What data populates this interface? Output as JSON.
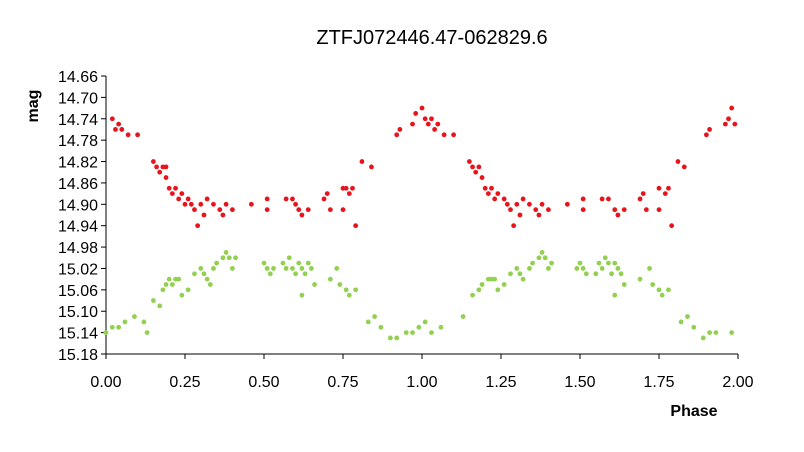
{
  "chart_data": {
    "type": "scatter",
    "title": "ZTFJ072446.47-062829.6",
    "xlabel": "Phase",
    "ylabel": "mag",
    "xlim": [
      0.0,
      2.0
    ],
    "ylim": [
      14.66,
      15.18
    ],
    "y_inverted": true,
    "grid": false,
    "legend": "none",
    "x_ticks": [
      "0.00",
      "0.25",
      "0.50",
      "0.75",
      "1.00",
      "1.25",
      "1.50",
      "1.75",
      "2.00"
    ],
    "y_ticks": [
      "14.66",
      "14.70",
      "14.74",
      "14.78",
      "14.82",
      "14.86",
      "14.90",
      "14.94",
      "14.98",
      "15.02",
      "15.06",
      "15.10",
      "15.14",
      "15.18"
    ],
    "series": [
      {
        "color": "#e8141b",
        "points": [
          [
            0.02,
            14.74
          ],
          [
            0.03,
            14.76
          ],
          [
            0.04,
            14.75
          ],
          [
            0.05,
            14.76
          ],
          [
            0.07,
            14.77
          ],
          [
            0.1,
            14.77
          ],
          [
            0.15,
            14.82
          ],
          [
            0.16,
            14.83
          ],
          [
            0.17,
            14.84
          ],
          [
            0.18,
            14.83
          ],
          [
            0.19,
            14.85
          ],
          [
            0.19,
            14.83
          ],
          [
            0.2,
            14.87
          ],
          [
            0.21,
            14.88
          ],
          [
            0.22,
            14.87
          ],
          [
            0.23,
            14.89
          ],
          [
            0.24,
            14.88
          ],
          [
            0.25,
            14.9
          ],
          [
            0.26,
            14.89
          ],
          [
            0.27,
            14.9
          ],
          [
            0.28,
            14.91
          ],
          [
            0.29,
            14.94
          ],
          [
            0.3,
            14.9
          ],
          [
            0.31,
            14.92
          ],
          [
            0.32,
            14.89
          ],
          [
            0.34,
            14.9
          ],
          [
            0.36,
            14.91
          ],
          [
            0.37,
            14.92
          ],
          [
            0.38,
            14.9
          ],
          [
            0.4,
            14.91
          ],
          [
            0.46,
            14.9
          ],
          [
            0.51,
            14.89
          ],
          [
            0.51,
            14.91
          ],
          [
            0.57,
            14.89
          ],
          [
            0.59,
            14.89
          ],
          [
            0.6,
            14.9
          ],
          [
            0.61,
            14.91
          ],
          [
            0.62,
            14.92
          ],
          [
            0.64,
            14.91
          ],
          [
            0.69,
            14.89
          ],
          [
            0.7,
            14.88
          ],
          [
            0.71,
            14.91
          ],
          [
            0.75,
            14.87
          ],
          [
            0.75,
            14.91
          ],
          [
            0.76,
            14.87
          ],
          [
            0.77,
            14.88
          ],
          [
            0.78,
            14.87
          ],
          [
            0.79,
            14.94
          ],
          [
            0.81,
            14.82
          ],
          [
            0.84,
            14.83
          ],
          [
            0.92,
            14.77
          ],
          [
            0.93,
            14.76
          ],
          [
            0.97,
            14.75
          ],
          [
            0.98,
            14.73
          ],
          [
            1.0,
            14.72
          ],
          [
            1.01,
            14.74
          ],
          [
            1.02,
            14.75
          ],
          [
            1.03,
            14.74
          ],
          [
            1.04,
            14.76
          ],
          [
            1.05,
            14.75
          ],
          [
            1.07,
            14.77
          ],
          [
            1.1,
            14.77
          ],
          [
            1.15,
            14.82
          ],
          [
            1.16,
            14.83
          ],
          [
            1.17,
            14.84
          ],
          [
            1.18,
            14.83
          ],
          [
            1.19,
            14.85
          ],
          [
            1.2,
            14.87
          ],
          [
            1.21,
            14.88
          ],
          [
            1.22,
            14.87
          ],
          [
            1.23,
            14.89
          ],
          [
            1.24,
            14.88
          ],
          [
            1.26,
            14.89
          ],
          [
            1.27,
            14.9
          ],
          [
            1.28,
            14.91
          ],
          [
            1.29,
            14.94
          ],
          [
            1.3,
            14.9
          ],
          [
            1.31,
            14.92
          ],
          [
            1.32,
            14.89
          ],
          [
            1.34,
            14.9
          ],
          [
            1.36,
            14.91
          ],
          [
            1.37,
            14.92
          ],
          [
            1.38,
            14.9
          ],
          [
            1.4,
            14.91
          ],
          [
            1.46,
            14.9
          ],
          [
            1.51,
            14.89
          ],
          [
            1.51,
            14.91
          ],
          [
            1.57,
            14.89
          ],
          [
            1.59,
            14.89
          ],
          [
            1.61,
            14.91
          ],
          [
            1.62,
            14.92
          ],
          [
            1.64,
            14.91
          ],
          [
            1.69,
            14.89
          ],
          [
            1.7,
            14.88
          ],
          [
            1.71,
            14.91
          ],
          [
            1.75,
            14.87
          ],
          [
            1.75,
            14.91
          ],
          [
            1.77,
            14.88
          ],
          [
            1.78,
            14.87
          ],
          [
            1.79,
            14.94
          ],
          [
            1.81,
            14.82
          ],
          [
            1.83,
            14.83
          ],
          [
            1.9,
            14.77
          ],
          [
            1.91,
            14.76
          ],
          [
            1.96,
            14.75
          ],
          [
            1.97,
            14.74
          ],
          [
            1.98,
            14.72
          ],
          [
            1.99,
            14.75
          ]
        ]
      },
      {
        "color": "#92d050",
        "points": [
          [
            0.0,
            15.14
          ],
          [
            0.02,
            15.13
          ],
          [
            0.04,
            15.13
          ],
          [
            0.06,
            15.12
          ],
          [
            0.09,
            15.11
          ],
          [
            0.12,
            15.12
          ],
          [
            0.13,
            15.14
          ],
          [
            0.15,
            15.08
          ],
          [
            0.17,
            15.09
          ],
          [
            0.18,
            15.06
          ],
          [
            0.19,
            15.05
          ],
          [
            0.2,
            15.04
          ],
          [
            0.21,
            15.05
          ],
          [
            0.22,
            15.04
          ],
          [
            0.23,
            15.04
          ],
          [
            0.24,
            15.07
          ],
          [
            0.26,
            15.06
          ],
          [
            0.28,
            15.03
          ],
          [
            0.3,
            15.02
          ],
          [
            0.31,
            15.03
          ],
          [
            0.32,
            15.04
          ],
          [
            0.33,
            15.05
          ],
          [
            0.34,
            15.02
          ],
          [
            0.35,
            15.01
          ],
          [
            0.37,
            15.0
          ],
          [
            0.38,
            14.99
          ],
          [
            0.39,
            15.0
          ],
          [
            0.4,
            15.02
          ],
          [
            0.41,
            15.0
          ],
          [
            0.5,
            15.01
          ],
          [
            0.51,
            15.02
          ],
          [
            0.52,
            15.03
          ],
          [
            0.53,
            15.02
          ],
          [
            0.56,
            15.01
          ],
          [
            0.57,
            15.02
          ],
          [
            0.58,
            15.0
          ],
          [
            0.59,
            15.02
          ],
          [
            0.6,
            15.03
          ],
          [
            0.61,
            15.01
          ],
          [
            0.62,
            15.02
          ],
          [
            0.63,
            15.03
          ],
          [
            0.64,
            15.01
          ],
          [
            0.65,
            15.02
          ],
          [
            0.66,
            15.05
          ],
          [
            0.62,
            15.07
          ],
          [
            0.71,
            15.04
          ],
          [
            0.73,
            15.02
          ],
          [
            0.74,
            15.05
          ],
          [
            0.76,
            15.06
          ],
          [
            0.77,
            15.07
          ],
          [
            0.79,
            15.06
          ],
          [
            0.83,
            15.12
          ],
          [
            0.85,
            15.11
          ],
          [
            0.87,
            15.13
          ],
          [
            0.9,
            15.15
          ],
          [
            0.92,
            15.15
          ],
          [
            0.95,
            15.14
          ],
          [
            0.97,
            15.14
          ],
          [
            0.99,
            15.13
          ],
          [
            1.01,
            15.12
          ],
          [
            1.03,
            15.14
          ],
          [
            1.06,
            15.13
          ],
          [
            1.13,
            15.11
          ],
          [
            1.16,
            15.07
          ],
          [
            1.18,
            15.06
          ],
          [
            1.19,
            15.05
          ],
          [
            1.21,
            15.04
          ],
          [
            1.22,
            15.04
          ],
          [
            1.23,
            15.04
          ],
          [
            1.24,
            15.06
          ],
          [
            1.26,
            15.05
          ],
          [
            1.28,
            15.03
          ],
          [
            1.3,
            15.02
          ],
          [
            1.31,
            15.03
          ],
          [
            1.32,
            15.04
          ],
          [
            1.34,
            15.02
          ],
          [
            1.35,
            15.01
          ],
          [
            1.37,
            15.0
          ],
          [
            1.38,
            14.99
          ],
          [
            1.39,
            15.0
          ],
          [
            1.4,
            15.02
          ],
          [
            1.41,
            15.01
          ],
          [
            1.49,
            15.02
          ],
          [
            1.5,
            15.01
          ],
          [
            1.51,
            15.02
          ],
          [
            1.52,
            15.03
          ],
          [
            1.55,
            15.03
          ],
          [
            1.56,
            15.01
          ],
          [
            1.57,
            15.02
          ],
          [
            1.58,
            15.0
          ],
          [
            1.59,
            15.01
          ],
          [
            1.6,
            15.03
          ],
          [
            1.61,
            15.01
          ],
          [
            1.62,
            15.02
          ],
          [
            1.63,
            15.03
          ],
          [
            1.64,
            15.05
          ],
          [
            1.61,
            15.07
          ],
          [
            1.69,
            15.04
          ],
          [
            1.72,
            15.02
          ],
          [
            1.73,
            15.05
          ],
          [
            1.75,
            15.06
          ],
          [
            1.76,
            15.07
          ],
          [
            1.78,
            15.06
          ],
          [
            1.82,
            15.12
          ],
          [
            1.84,
            15.11
          ],
          [
            1.86,
            15.13
          ],
          [
            1.89,
            15.15
          ],
          [
            1.91,
            15.14
          ],
          [
            1.93,
            15.14
          ],
          [
            1.98,
            15.14
          ]
        ]
      }
    ]
  }
}
